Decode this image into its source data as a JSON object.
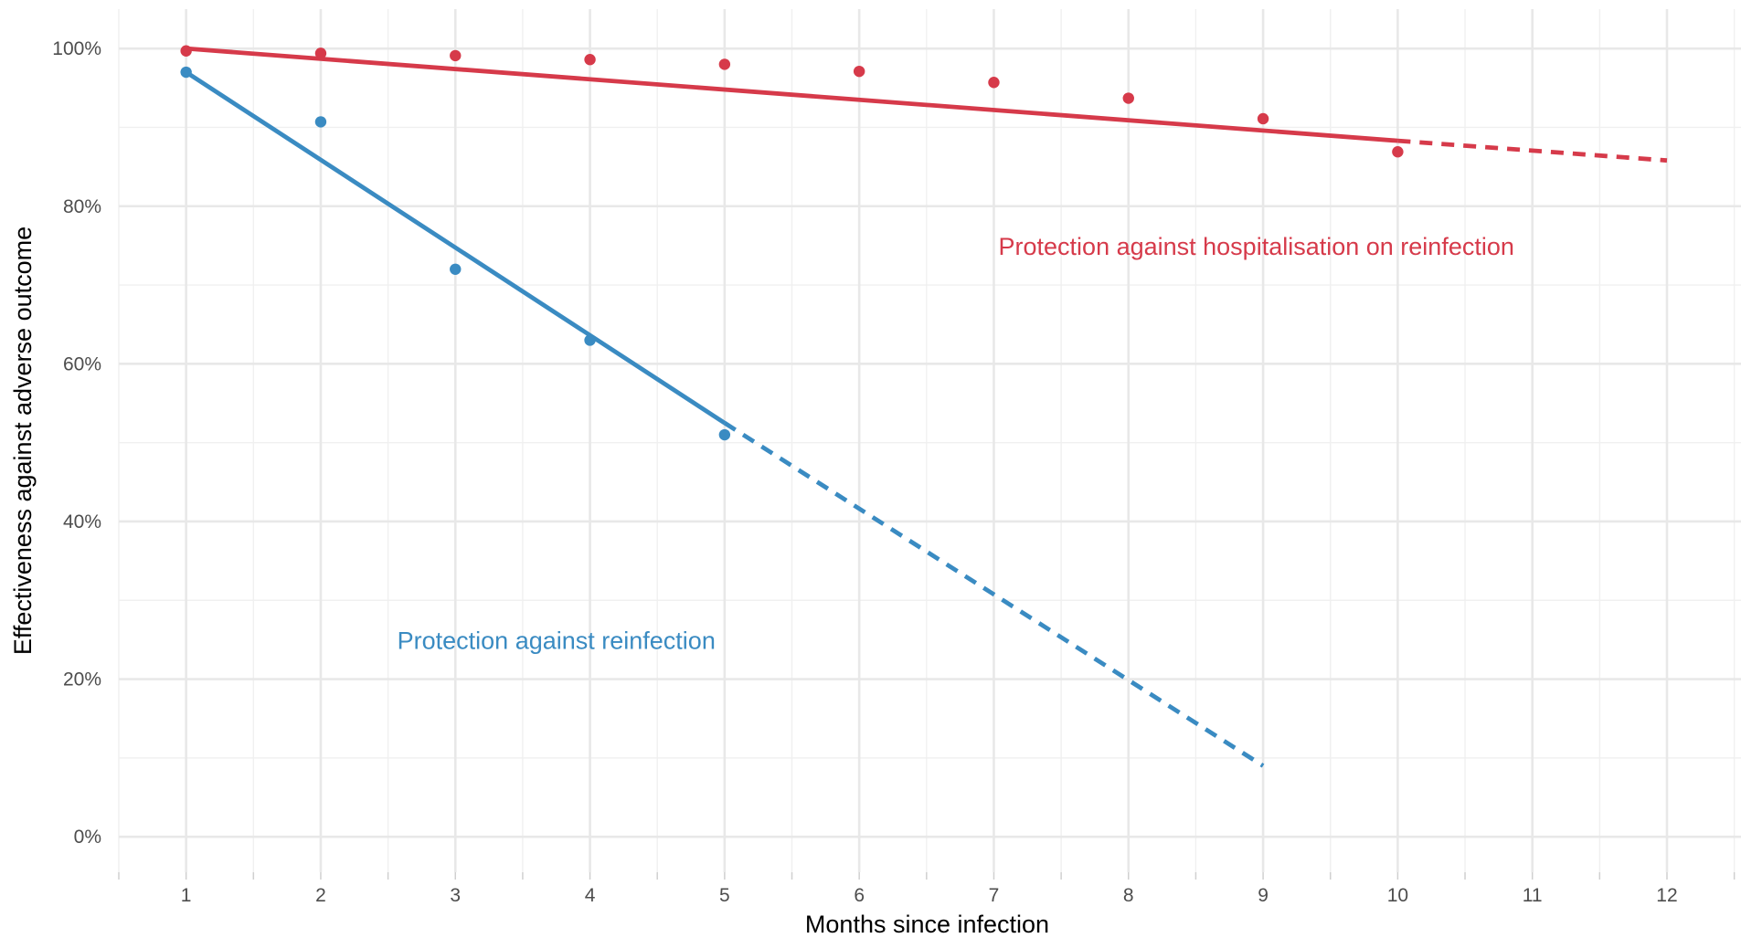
{
  "chart_data": {
    "type": "scatter",
    "xlabel": "Months since infection",
    "ylabel": "Effectiveness against adverse outcome",
    "xlim": [
      0.5,
      12.55
    ],
    "ylim": [
      -0.045,
      1.05
    ],
    "x_ticks": [
      1,
      2,
      3,
      4,
      5,
      6,
      7,
      8,
      9,
      10,
      11,
      12
    ],
    "y_ticks": [
      0,
      0.2,
      0.4,
      0.6,
      0.8,
      1.0
    ],
    "y_tick_labels": [
      "0%",
      "20%",
      "40%",
      "60%",
      "80%",
      "100%"
    ],
    "grid": true,
    "legend": "none",
    "series": [
      {
        "name": "Protection against reinfection",
        "color": "#3a8bc2",
        "points_x": [
          1,
          2,
          3,
          4,
          5
        ],
        "points_y": [
          0.97,
          0.907,
          0.72,
          0.63,
          0.51
        ],
        "fit_solid": {
          "x": [
            1,
            5
          ],
          "y": [
            0.97,
            0.525
          ]
        },
        "fit_dashed": {
          "x": [
            5,
            9
          ],
          "y": [
            0.525,
            0.09
          ]
        },
        "label_position": {
          "x": 3.75,
          "y": 0.25
        }
      },
      {
        "name": "Protection against hospitalisation on reinfection",
        "color": "#d63a4a",
        "points_x": [
          1,
          2,
          3,
          4,
          5,
          6,
          7,
          8,
          9,
          10
        ],
        "points_y": [
          0.997,
          0.994,
          0.991,
          0.986,
          0.98,
          0.971,
          0.957,
          0.937,
          0.911,
          0.869
        ],
        "fit_solid": {
          "x": [
            1,
            10
          ],
          "y": [
            1.0,
            0.883
          ]
        },
        "fit_dashed": {
          "x": [
            10,
            12
          ],
          "y": [
            0.883,
            0.858
          ]
        },
        "label_position": {
          "x": 8.95,
          "y": 0.75
        }
      }
    ]
  }
}
